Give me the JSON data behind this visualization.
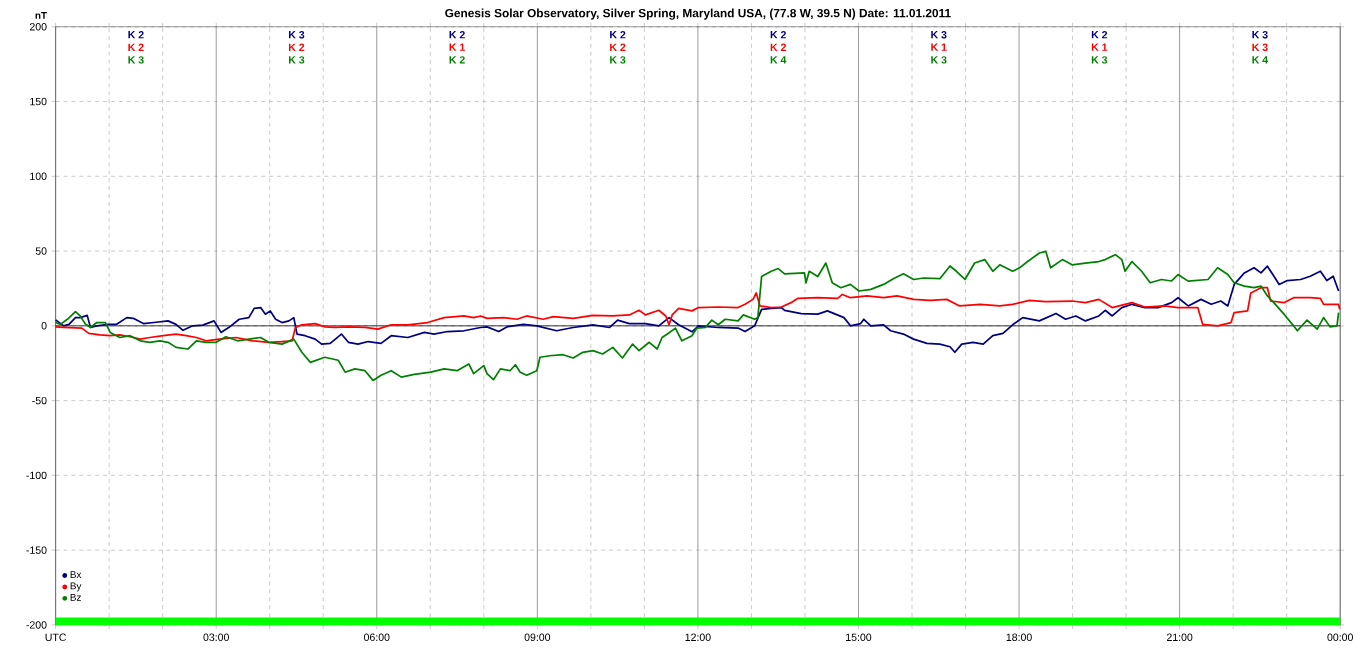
{
  "chart_data": {
    "type": "line",
    "title": "Genesis Solar Observatory, Silver Spring, Maryland USA, (77.8 W, 39.5 N)  Date: 11.01.2011",
    "ylabel": "nT",
    "xlim": [
      0,
      24
    ],
    "ylim": [
      -200,
      200
    ],
    "xticks": [
      {
        "value": 0,
        "label": "UTC"
      },
      {
        "value": 1,
        "label": null
      },
      {
        "value": 2,
        "label": null
      },
      {
        "value": 3,
        "label": "03:00"
      },
      {
        "value": 4,
        "label": null
      },
      {
        "value": 5,
        "label": null
      },
      {
        "value": 6,
        "label": "06:00"
      },
      {
        "value": 7,
        "label": null
      },
      {
        "value": 8,
        "label": null
      },
      {
        "value": 9,
        "label": "09:00"
      },
      {
        "value": 10,
        "label": null
      },
      {
        "value": 11,
        "label": null
      },
      {
        "value": 12,
        "label": "12:00"
      },
      {
        "value": 13,
        "label": null
      },
      {
        "value": 14,
        "label": null
      },
      {
        "value": 15,
        "label": "15:00"
      },
      {
        "value": 16,
        "label": null
      },
      {
        "value": 17,
        "label": null
      },
      {
        "value": 18,
        "label": "18:00"
      },
      {
        "value": 19,
        "label": null
      },
      {
        "value": 20,
        "label": null
      },
      {
        "value": 21,
        "label": "21:00"
      },
      {
        "value": 22,
        "label": null
      },
      {
        "value": 23,
        "label": null
      },
      {
        "value": 24,
        "label": "00:00"
      }
    ],
    "yticks": [
      -200,
      -150,
      -100,
      -50,
      0,
      50,
      100,
      150,
      200
    ],
    "grid": true,
    "legend": "bottom left",
    "marker": "none",
    "line_style": "solid",
    "ref_lines": [
      {
        "axis": "y",
        "value": 0,
        "color": "#000000"
      }
    ],
    "bands": [
      {
        "axis": "y",
        "from": -200,
        "to": -195,
        "color": "#00ff00"
      }
    ],
    "annotations": [
      "K 2",
      "K 2",
      "K 3",
      "K 3",
      "K 2",
      "K 3",
      "K 2",
      "K 1",
      "K 2",
      "K 2",
      "K 2",
      "K 3",
      "K 2",
      "K 2",
      "K 4",
      "K 3",
      "K 1",
      "K 3",
      "K 2",
      "K 1",
      "K 3",
      "K 3",
      "K 3",
      "K 4"
    ],
    "series": [
      {
        "name": "Bx",
        "color": "#000080",
        "x": [
          0,
          0.15,
          0.25,
          0.37,
          0.46,
          0.59,
          0.65,
          0.77,
          0.99,
          1.14,
          1.33,
          1.45,
          1.64,
          1.88,
          2.1,
          2.25,
          2.38,
          2.56,
          2.75,
          2.96,
          3.09,
          3.24,
          3.43,
          3.61,
          3.71,
          3.83,
          3.92,
          4.01,
          4.11,
          4.23,
          4.36,
          4.45,
          4.51,
          4.66,
          4.85,
          4.97,
          5.13,
          5.34,
          5.47,
          5.65,
          5.84,
          6.08,
          6.27,
          6.58,
          6.89,
          7.07,
          7.32,
          7.63,
          7.94,
          8.06,
          8.28,
          8.43,
          8.74,
          8.99,
          9.36,
          9.67,
          10.04,
          10.35,
          10.5,
          10.72,
          11.02,
          11.27,
          11.46,
          11.64,
          11.89,
          12.01,
          12.38,
          12.75,
          12.88,
          13.06,
          13.19,
          13.37,
          13.56,
          13.62,
          13.93,
          14.24,
          14.42,
          14.73,
          14.85,
          15.04,
          15.1,
          15.23,
          15.47,
          15.6,
          15.84,
          16.03,
          16.28,
          16.52,
          16.71,
          16.8,
          16.93,
          17.14,
          17.33,
          17.51,
          17.7,
          17.88,
          18.07,
          18.38,
          18.69,
          18.87,
          19.06,
          19.24,
          19.49,
          19.61,
          19.74,
          19.92,
          20.11,
          20.35,
          20.6,
          20.85,
          20.97,
          21.16,
          21.4,
          21.59,
          21.77,
          21.9,
          22.02,
          22.21,
          22.39,
          22.52,
          22.64,
          22.86,
          23.01,
          23.26,
          23.44,
          23.63,
          23.75,
          23.87,
          23.97
        ],
        "values": [
          4,
          0,
          1,
          5.5,
          5.5,
          7,
          -1,
          0,
          1,
          1,
          5.5,
          5,
          1.5,
          2.4,
          3.3,
          1,
          -3,
          0,
          0.5,
          3.3,
          -4.4,
          -1,
          4.4,
          5.5,
          11.7,
          12.2,
          7.8,
          10,
          4.4,
          2.2,
          3.3,
          5.5,
          -5.5,
          -6.6,
          -8.9,
          -12.2,
          -11.7,
          -5.5,
          -11,
          -12.2,
          -10.5,
          -11.7,
          -6.6,
          -7.8,
          -4.4,
          -5.5,
          -3.8,
          -3.3,
          -1.1,
          -0.7,
          -3.8,
          -0.7,
          1,
          0,
          -3.3,
          -1.1,
          0.7,
          -1.1,
          3.8,
          1.5,
          1.5,
          0,
          5.5,
          0.7,
          -4,
          0,
          -1.1,
          -1.5,
          -3.8,
          0,
          11,
          11.7,
          12.2,
          10.4,
          8.2,
          7.8,
          10,
          5.5,
          0,
          1.5,
          4.4,
          0,
          0.7,
          -3.3,
          -5.5,
          -8.9,
          -11.7,
          -12.2,
          -14,
          -17.7,
          -12.2,
          -11,
          -12.2,
          -6.6,
          -5,
          0.7,
          5.5,
          3.3,
          8.2,
          4.4,
          6.6,
          3.3,
          6.6,
          10.4,
          6.6,
          12.2,
          14.4,
          12.2,
          12.2,
          15.5,
          18.8,
          13.3,
          17.7,
          14.4,
          16.6,
          13.3,
          27.7,
          35.4,
          38.8,
          35.4,
          39.9,
          27.7,
          30.3,
          31,
          33.2,
          36.5,
          30.3,
          33.2,
          23.3
        ]
      },
      {
        "name": "By",
        "color": "#ff0000",
        "x": [
          0,
          0.15,
          0.49,
          0.62,
          0.83,
          1.02,
          1.2,
          1.39,
          1.58,
          1.76,
          2.01,
          2.25,
          2.44,
          2.63,
          2.81,
          3.06,
          3.37,
          3.68,
          3.98,
          4.23,
          4.42,
          4.48,
          4.6,
          4.85,
          5.03,
          5.22,
          5.47,
          5.78,
          6.02,
          6.27,
          6.58,
          6.95,
          7.26,
          7.63,
          7.81,
          7.94,
          8.06,
          8.37,
          8.62,
          8.8,
          9.11,
          9.3,
          9.67,
          10.04,
          10.41,
          10.72,
          10.9,
          11.02,
          11.27,
          11.4,
          11.46,
          11.52,
          11.64,
          11.89,
          12.01,
          12.38,
          12.75,
          12.88,
          13.03,
          13.09,
          13.16,
          13.37,
          13.56,
          13.74,
          13.87,
          14.24,
          14.61,
          14.7,
          14.85,
          15.16,
          15.47,
          15.72,
          16.03,
          16.34,
          16.65,
          16.89,
          17.27,
          17.64,
          17.88,
          18.19,
          18.5,
          18.99,
          19.24,
          19.49,
          19.74,
          19.98,
          20.11,
          20.35,
          20.72,
          20.97,
          21.34,
          21.43,
          21.71,
          21.96,
          22.02,
          22.27,
          22.33,
          22.52,
          22.64,
          22.7,
          22.95,
          23.13,
          23.44,
          23.63,
          23.69,
          23.97,
          23.99
        ],
        "values": [
          -0.7,
          -1,
          -1.5,
          -5,
          -6,
          -6.6,
          -6,
          -7.3,
          -8.9,
          -7.8,
          -6.6,
          -5.5,
          -6.6,
          -7.8,
          -10,
          -8.9,
          -7.8,
          -10,
          -11,
          -10.5,
          -10,
          -1,
          0.7,
          1.5,
          -0.7,
          -1,
          -0.7,
          -1,
          -2.2,
          0.7,
          0.7,
          2.2,
          5.5,
          6.6,
          5.5,
          6.6,
          5,
          5.5,
          4.4,
          6.6,
          4.4,
          6.2,
          5,
          7,
          6.6,
          7.3,
          10.4,
          7.3,
          10.4,
          6.6,
          0.7,
          7.3,
          11.7,
          10,
          12.2,
          12.6,
          12.2,
          14.4,
          17.7,
          22,
          13.3,
          12.2,
          12.6,
          15.5,
          18.4,
          18.8,
          18.4,
          21,
          18.8,
          20,
          18.8,
          20,
          17.7,
          17,
          17.7,
          13.3,
          14.4,
          13.3,
          14.4,
          17,
          16.2,
          16.6,
          15.5,
          17.7,
          12.2,
          14.4,
          15.5,
          12.6,
          13.3,
          12.2,
          12.2,
          1,
          0,
          2.2,
          8.9,
          10,
          22,
          25.5,
          25.5,
          16.6,
          15.5,
          18.8,
          18.8,
          18.4,
          14.4,
          14.4,
          11
        ]
      },
      {
        "name": "Bz",
        "color": "#008000",
        "x": [
          0,
          0.09,
          0.22,
          0.37,
          0.46,
          0.56,
          0.65,
          0.77,
          0.93,
          1.02,
          1.2,
          1.39,
          1.58,
          1.76,
          1.95,
          2.1,
          2.25,
          2.47,
          2.63,
          2.81,
          3,
          3.18,
          3.4,
          3.61,
          3.83,
          3.98,
          4.23,
          4.45,
          4.6,
          4.76,
          5.03,
          5.28,
          5.41,
          5.59,
          5.78,
          5.93,
          6.08,
          6.27,
          6.46,
          6.7,
          7.01,
          7.26,
          7.5,
          7.72,
          7.81,
          8,
          8.06,
          8.18,
          8.31,
          8.49,
          8.59,
          8.68,
          8.8,
          8.99,
          9.05,
          9.23,
          9.48,
          9.67,
          9.85,
          10.04,
          10.22,
          10.41,
          10.59,
          10.78,
          10.9,
          11.09,
          11.24,
          11.33,
          11.43,
          11.58,
          11.7,
          11.89,
          11.98,
          12.14,
          12.26,
          12.38,
          12.51,
          12.75,
          12.85,
          13.06,
          13.12,
          13.19,
          13.37,
          13.5,
          13.62,
          13.99,
          14.02,
          14.08,
          14.24,
          14.39,
          14.51,
          14.67,
          14.85,
          15.01,
          15.23,
          15.47,
          15.66,
          15.84,
          16.03,
          16.22,
          16.52,
          16.71,
          16.83,
          16.99,
          17.17,
          17.36,
          17.51,
          17.64,
          17.88,
          18.01,
          18.16,
          18.38,
          18.5,
          18.59,
          18.81,
          18.99,
          19.24,
          19.49,
          19.61,
          19.8,
          19.92,
          19.98,
          20.11,
          20.29,
          20.45,
          20.66,
          20.85,
          20.97,
          21.16,
          21.53,
          21.71,
          21.9,
          22.02,
          22.21,
          22.39,
          22.52,
          22.64,
          22.76,
          22.95,
          23.13,
          23.2,
          23.38,
          23.57,
          23.69,
          23.81,
          23.94,
          23.97
        ],
        "values": [
          2.2,
          1,
          4.4,
          9.5,
          6.6,
          1,
          -1,
          2.2,
          2.2,
          -4.4,
          -7.8,
          -6.6,
          -10,
          -11,
          -10,
          -11,
          -14.4,
          -15.5,
          -10,
          -11,
          -11,
          -7.3,
          -10,
          -8.9,
          -7.8,
          -11,
          -12.2,
          -8.9,
          -17.7,
          -24.4,
          -21,
          -23,
          -31,
          -28.8,
          -30,
          -36.5,
          -33,
          -30,
          -34.3,
          -32.5,
          -31,
          -28.8,
          -30,
          -25.5,
          -32,
          -26.6,
          -32,
          -36,
          -28.8,
          -30,
          -26,
          -31,
          -33,
          -30,
          -21,
          -20,
          -19.3,
          -21.5,
          -17.7,
          -16.6,
          -18.8,
          -14.4,
          -21.5,
          -12.2,
          -16.6,
          -11,
          -15.5,
          -7.8,
          -5.5,
          -1.5,
          -10,
          -6.6,
          -1.5,
          -1,
          3.8,
          0.7,
          4.4,
          3.3,
          7.3,
          4.4,
          5.5,
          33,
          36.5,
          38.3,
          34.8,
          35.4,
          28.8,
          36.5,
          33,
          42,
          28.8,
          25.5,
          27.7,
          23.3,
          24.4,
          27.7,
          31.7,
          34.8,
          31,
          32,
          31.5,
          40,
          36.5,
          31,
          42,
          44.3,
          36.5,
          40.8,
          36.5,
          38.8,
          43,
          48.7,
          49.8,
          38.8,
          44.3,
          40.8,
          42,
          43,
          44.3,
          47.6,
          44.3,
          36.5,
          43,
          36.5,
          28.8,
          31,
          30,
          34.3,
          29.9,
          31,
          38.8,
          34.3,
          28.8,
          26.6,
          25.5,
          26.6,
          20,
          15.5,
          7.8,
          0,
          -3.3,
          3.8,
          -2.2,
          5.5,
          -0.7,
          0,
          8.9
        ]
      }
    ]
  }
}
